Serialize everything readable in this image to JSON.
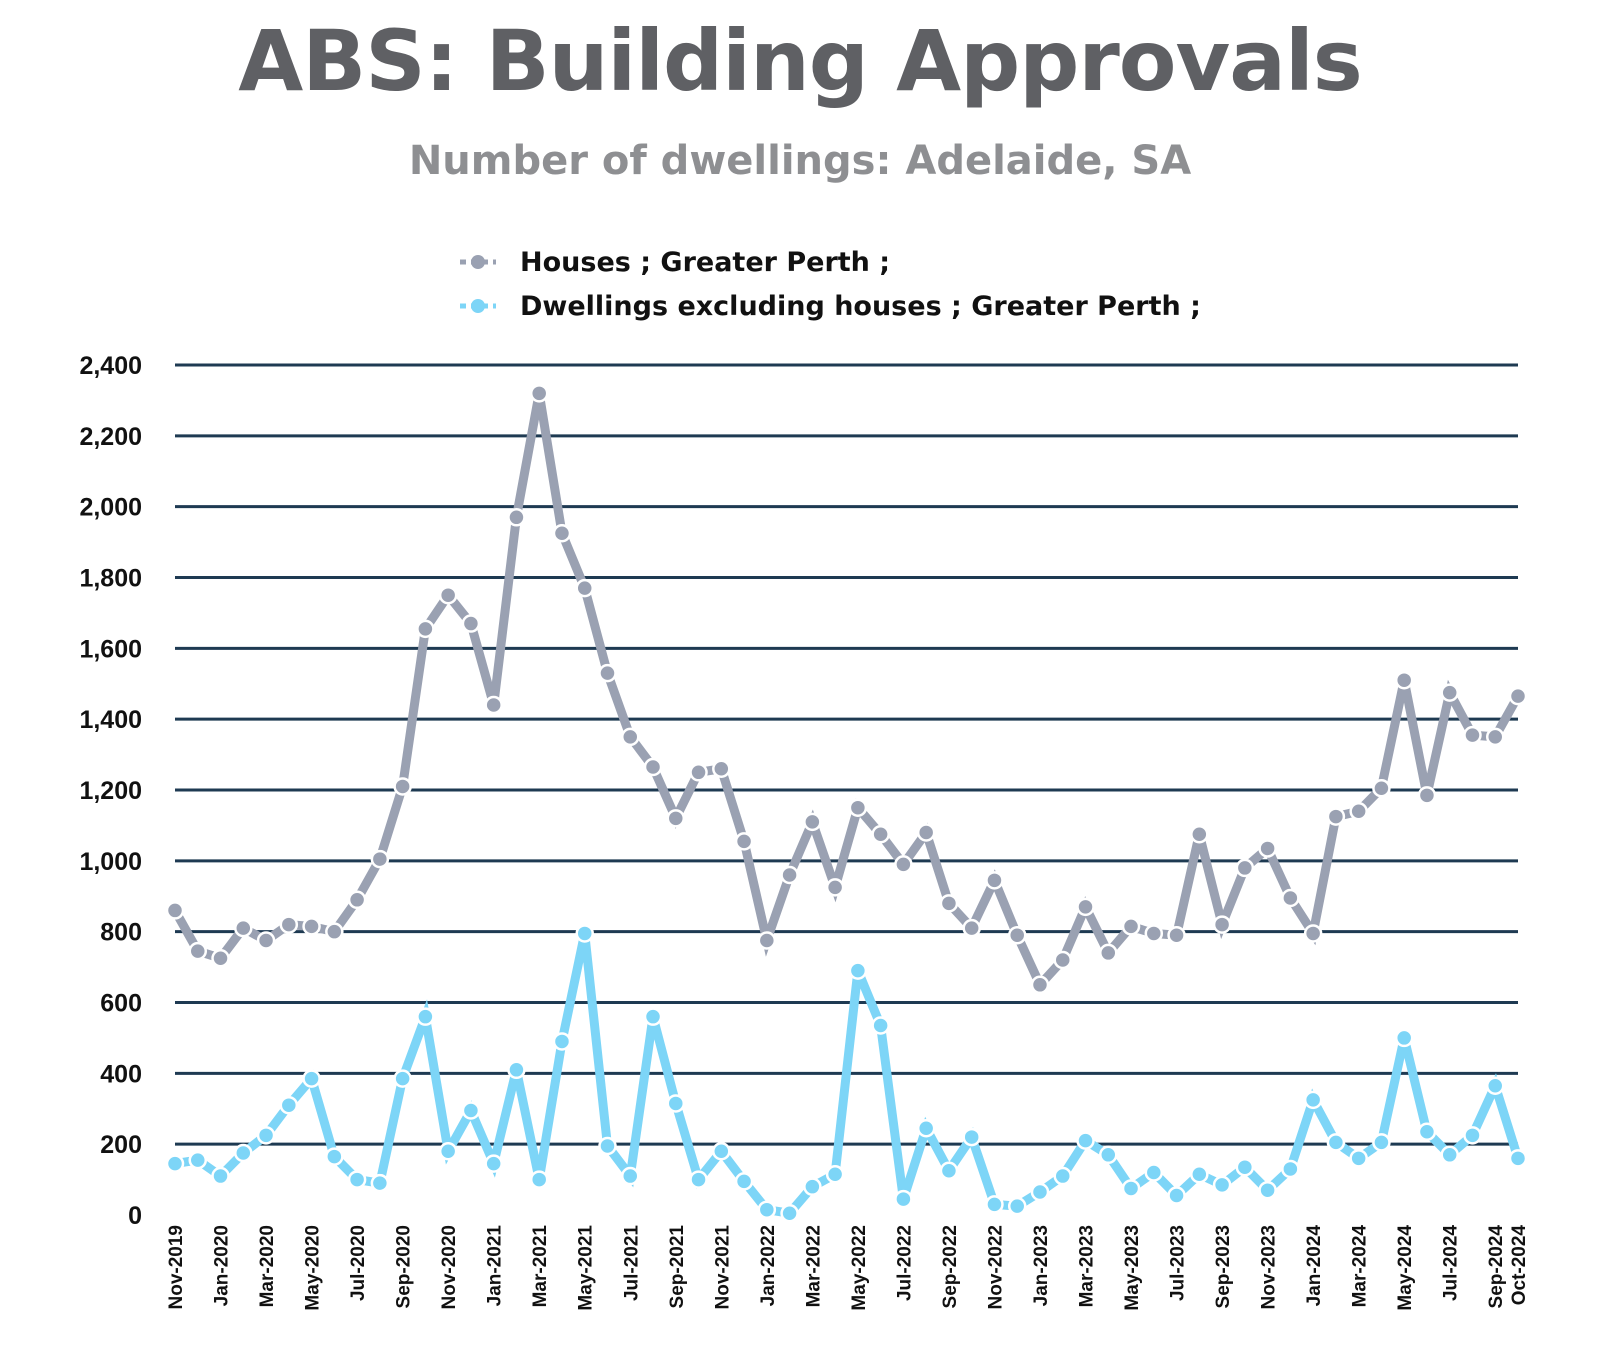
{
  "header": {
    "title": "ABS: Building Approvals",
    "subtitle": "Number of dwellings: Adelaide, SA"
  },
  "legend": {
    "items": [
      {
        "label": "Houses ;  Greater Perth ;",
        "color": "#9aa1b2"
      },
      {
        "label": "Dwellings excluding houses ;  Greater Perth ;",
        "color": "#7dd5f7"
      }
    ]
  },
  "colors": {
    "grid": "#1e3a52",
    "houses": "#9aa1b2",
    "dwellings": "#7dd5f7"
  },
  "chart_data": {
    "type": "line",
    "title": "ABS: Building Approvals",
    "subtitle": "Number of dwellings: Adelaide, SA",
    "ylim": [
      0,
      2400
    ],
    "yticks": [
      "0",
      "200",
      "400",
      "600",
      "800",
      "1,000",
      "1,200",
      "1,400",
      "1,600",
      "1,800",
      "2,000",
      "2,200",
      "2,400"
    ],
    "ytick_values": [
      0,
      200,
      400,
      600,
      800,
      1000,
      1200,
      1400,
      1600,
      1800,
      2000,
      2200,
      2400
    ],
    "grid": true,
    "legend_position": "top",
    "x": [
      "Nov-2019",
      "Dec-2019",
      "Jan-2020",
      "Feb-2020",
      "Mar-2020",
      "Apr-2020",
      "May-2020",
      "Jun-2020",
      "Jul-2020",
      "Aug-2020",
      "Sep-2020",
      "Oct-2020",
      "Nov-2020",
      "Dec-2020",
      "Jan-2021",
      "Feb-2021",
      "Mar-2021",
      "Apr-2021",
      "May-2021",
      "Jun-2021",
      "Jul-2021",
      "Aug-2021",
      "Sep-2021",
      "Oct-2021",
      "Nov-2021",
      "Dec-2021",
      "Jan-2022",
      "Feb-2022",
      "Mar-2022",
      "Apr-2022",
      "May-2022",
      "Jun-2022",
      "Jul-2022",
      "Aug-2022",
      "Sep-2022",
      "Oct-2022",
      "Nov-2022",
      "Dec-2022",
      "Jan-2023",
      "Feb-2023",
      "Mar-2023",
      "Apr-2023",
      "May-2023",
      "Jun-2023",
      "Jul-2023",
      "Aug-2023",
      "Sep-2023",
      "Oct-2023",
      "Nov-2023",
      "Dec-2023",
      "Jan-2024",
      "Feb-2024",
      "Mar-2024",
      "Apr-2024",
      "May-2024",
      "Jun-2024",
      "Jul-2024",
      "Aug-2024",
      "Sep-2024",
      "Oct-2024"
    ],
    "xtick_labels": [
      "Nov-2019",
      "Jan-2020",
      "Mar-2020",
      "May-2020",
      "Jul-2020",
      "Sep-2020",
      "Nov-2020",
      "Jan-2021",
      "Mar-2021",
      "May-2021",
      "Jul-2021",
      "Sep-2021",
      "Nov-2021",
      "Jan-2022",
      "Mar-2022",
      "May-2022",
      "Jul-2022",
      "Sep-2022",
      "Nov-2022",
      "Jan-2023",
      "Mar-2023",
      "May-2023",
      "Jul-2023",
      "Sep-2023",
      "Nov-2023",
      "Jan-2024",
      "Mar-2024",
      "May-2024",
      "Jul-2024",
      "Sep-2024",
      "Oct-2024"
    ],
    "series": [
      {
        "name": "Houses ;  Greater Perth ;",
        "values": [
          860,
          745,
          725,
          810,
          775,
          820,
          815,
          800,
          890,
          1005,
          1210,
          1655,
          1750,
          1670,
          1440,
          1970,
          2320,
          1925,
          1770,
          1530,
          1350,
          1265,
          1120,
          1250,
          1260,
          1055,
          775,
          960,
          1110,
          925,
          1150,
          1075,
          990,
          1080,
          880,
          810,
          945,
          790,
          650,
          720,
          870,
          740,
          815,
          795,
          790,
          1075,
          820,
          980,
          1035,
          895,
          795,
          1125,
          1140,
          1205,
          1510,
          1185,
          1475,
          1355,
          1350,
          1465
        ]
      },
      {
        "name": "Dwellings excluding houses ;  Greater Perth ;",
        "values": [
          145,
          155,
          110,
          175,
          225,
          310,
          385,
          165,
          100,
          90,
          385,
          560,
          180,
          295,
          145,
          410,
          100,
          490,
          795,
          195,
          110,
          560,
          315,
          100,
          180,
          95,
          15,
          5,
          80,
          115,
          690,
          535,
          45,
          245,
          125,
          220,
          30,
          25,
          65,
          110,
          210,
          170,
          75,
          120,
          55,
          115,
          85,
          135,
          70,
          130,
          325,
          205,
          160,
          205,
          500,
          235,
          170,
          225,
          365,
          160
        ]
      }
    ]
  }
}
